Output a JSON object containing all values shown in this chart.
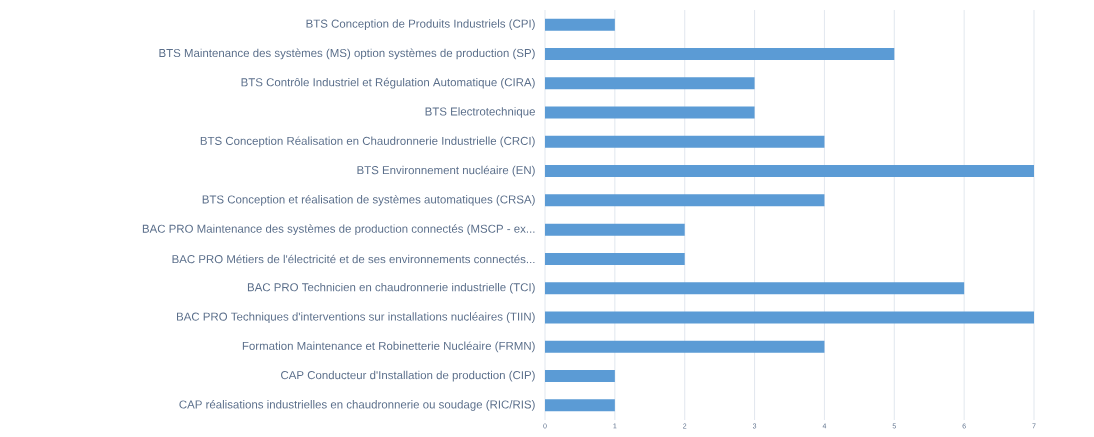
{
  "chart_data": {
    "type": "bar",
    "orientation": "horizontal",
    "categories": [
      "BTS Conception de Produits Industriels (CPI)",
      "BTS Maintenance des systèmes (MS) option systèmes de production (SP)",
      "BTS Contrôle Industriel et Régulation Automatique (CIRA)",
      "BTS Electrotechnique",
      "BTS Conception Réalisation en Chaudronnerie Industrielle (CRCI)",
      "BTS Environnement nucléaire (EN)",
      "BTS Conception et réalisation de systèmes automatiques (CRSA)",
      "BAC PRO Maintenance des systèmes de production connectés (MSCP - ex...",
      "BAC PRO Métiers de l'électricité et de ses environnements connectés...",
      "BAC PRO Technicien en chaudronnerie industrielle (TCI)",
      "BAC PRO Techniques d'interventions sur installations nucléaires (TIIN)",
      "Formation Maintenance et Robinetterie Nucléaire (FRMN)",
      "CAP Conducteur d'Installation de production (CIP)",
      "CAP réalisations industrielles en chaudronnerie ou soudage (RIC/RIS)"
    ],
    "values": [
      1,
      5,
      3,
      3,
      4,
      7,
      4,
      2,
      2,
      6,
      7,
      4,
      1,
      1
    ],
    "color": "#5b9bd5",
    "xlim": [
      0,
      7
    ],
    "xticks": [
      0,
      1,
      2,
      3,
      4,
      5,
      6,
      7
    ],
    "grid": "x"
  }
}
